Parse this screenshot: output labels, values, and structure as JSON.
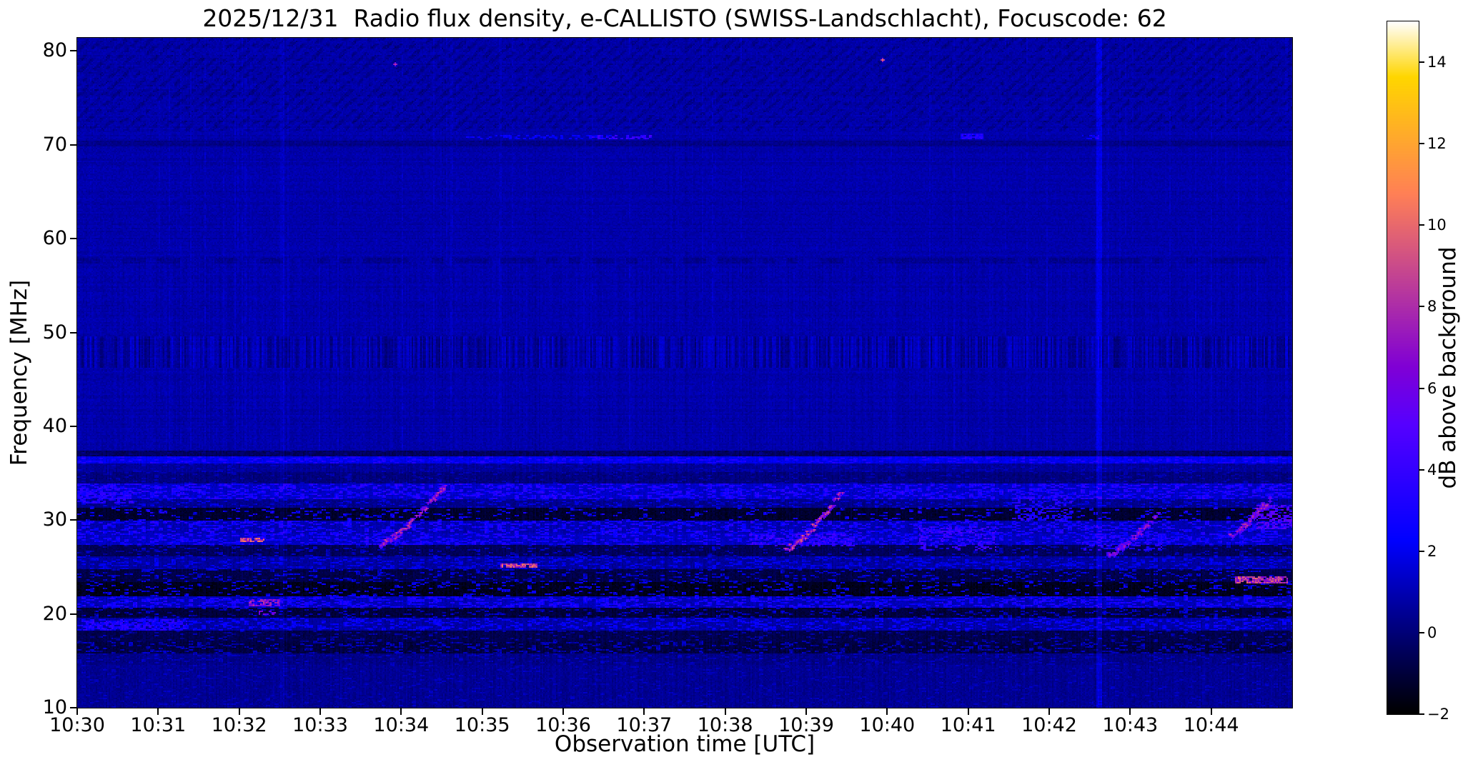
{
  "figure": {
    "background": "#ffffff",
    "text_color": "#000000"
  },
  "chart_data": {
    "type": "heatmap",
    "title": "2025/12/31  Radio flux density, e-CALLISTO (SWISS-Landschlacht), Focuscode: 62",
    "xlabel": "Observation time [UTC]",
    "ylabel": "Frequency [MHz]",
    "colorbar_label": "dB above background",
    "colormap": "gnuplot2",
    "colormap_stops": [
      {
        "value": -2,
        "hex": "#000000"
      },
      {
        "value": 2.25,
        "hex": "#0000ff"
      },
      {
        "value": 6.5,
        "hex": "#8000d6"
      },
      {
        "value": 10.75,
        "hex": "#ff8057"
      },
      {
        "value": 13.64,
        "hex": "#ffd600"
      },
      {
        "value": 15,
        "hex": "#ffffff"
      }
    ],
    "x_tick_labels": [
      "10:30",
      "10:31",
      "10:32",
      "10:33",
      "10:34",
      "10:35",
      "10:36",
      "10:37",
      "10:38",
      "10:39",
      "10:40",
      "10:41",
      "10:42",
      "10:43",
      "10:44"
    ],
    "x_tick_minutes": [
      0,
      1,
      2,
      3,
      4,
      5,
      6,
      7,
      8,
      9,
      10,
      11,
      12,
      13,
      14
    ],
    "x_start_minutes": 0,
    "x_end_minutes": 15,
    "y_ticks_mhz": [
      80,
      70,
      60,
      50,
      40,
      30,
      20,
      10
    ],
    "freq_range_mhz": [
      10,
      81.4
    ],
    "value_range_db": [
      -2,
      15
    ],
    "colorbar_tick_values": [
      14,
      12,
      10,
      8,
      6,
      4,
      2,
      0,
      -2
    ],
    "colorbar_tick_labels": [
      "14",
      "12",
      "10",
      "8",
      "6",
      "4",
      "2",
      "0",
      "−2"
    ],
    "background_level_db": 0.8,
    "rfi_bands": [
      {
        "f_lo": 36.8,
        "f_hi": 37.4,
        "level_db": -0.4,
        "speckle_db": 0.8,
        "fill": 0.06
      },
      {
        "f_lo": 36.1,
        "f_hi": 36.8,
        "level_db": 1.9,
        "speckle_db": 1.6,
        "fill": 0.25
      },
      {
        "f_lo": 35.1,
        "f_hi": 36.1,
        "level_db": 0.55,
        "speckle_db": 0.9,
        "fill": 0.12
      },
      {
        "f_lo": 33.9,
        "f_hi": 35.1,
        "level_db": 0.1,
        "speckle_db": 1.2,
        "fill": 0.12
      },
      {
        "f_lo": 32.3,
        "f_hi": 33.9,
        "level_db": 1.3,
        "speckle_db": 2.6,
        "fill": 0.42
      },
      {
        "f_lo": 31.3,
        "f_hi": 32.3,
        "level_db": 0.35,
        "speckle_db": 1.8,
        "fill": 0.22
      },
      {
        "f_lo": 29.9,
        "f_hi": 31.3,
        "level_db": -1.2,
        "speckle_db": 4.8,
        "fill": 0.14
      },
      {
        "f_lo": 28.5,
        "f_hi": 29.9,
        "level_db": 0.9,
        "speckle_db": 2.8,
        "fill": 0.38
      },
      {
        "f_lo": 27.4,
        "f_hi": 28.5,
        "level_db": 1.2,
        "speckle_db": 2.4,
        "fill": 0.36
      },
      {
        "f_lo": 26.2,
        "f_hi": 27.4,
        "level_db": -0.5,
        "speckle_db": 2.2,
        "fill": 0.15
      },
      {
        "f_lo": 24.8,
        "f_hi": 26.2,
        "level_db": 0.6,
        "speckle_db": 1.8,
        "fill": 0.3
      },
      {
        "f_lo": 23.4,
        "f_hi": 24.8,
        "level_db": -0.8,
        "speckle_db": 3.2,
        "fill": 0.2
      },
      {
        "f_lo": 21.8,
        "f_hi": 23.4,
        "level_db": -1.5,
        "speckle_db": 4.6,
        "fill": 0.15
      },
      {
        "f_lo": 20.6,
        "f_hi": 21.8,
        "level_db": 1.0,
        "speckle_db": 2.6,
        "fill": 0.42
      },
      {
        "f_lo": 19.6,
        "f_hi": 20.6,
        "level_db": -1.0,
        "speckle_db": 3.0,
        "fill": 0.18
      },
      {
        "f_lo": 18.2,
        "f_hi": 19.6,
        "level_db": 0.7,
        "speckle_db": 2.2,
        "fill": 0.35
      },
      {
        "f_lo": 17.0,
        "f_hi": 18.2,
        "level_db": -0.7,
        "speckle_db": 2.0,
        "fill": 0.12
      },
      {
        "f_lo": 15.8,
        "f_hi": 17.0,
        "level_db": -0.9,
        "speckle_db": 2.6,
        "fill": 0.25
      },
      {
        "f_lo": 14.5,
        "f_hi": 15.8,
        "level_db": 0.25,
        "speckle_db": 1.2,
        "fill": 0.15
      },
      {
        "f_lo": 10.0,
        "f_hi": 14.5,
        "level_db": 0.45,
        "speckle_db": 1.0,
        "fill": 0.07
      }
    ],
    "patches": [
      {
        "t_start": 2.02,
        "t_end": 2.32,
        "f_lo": 27.6,
        "f_hi": 28.15,
        "db": 9.5,
        "fill": 0.85
      },
      {
        "t_start": 5.22,
        "t_end": 5.68,
        "f_lo": 24.85,
        "f_hi": 25.45,
        "db": 9.0,
        "fill": 0.9
      },
      {
        "t_start": 14.3,
        "t_end": 14.95,
        "f_lo": 23.3,
        "f_hi": 24.0,
        "db": 8.5,
        "fill": 0.8
      },
      {
        "t_start": 2.12,
        "t_end": 2.5,
        "f_lo": 20.8,
        "f_hi": 21.5,
        "db": 7.0,
        "fill": 0.7
      },
      {
        "t_start": 2.25,
        "t_end": 2.45,
        "f_lo": 19.9,
        "f_hi": 20.4,
        "db": 6.0,
        "fill": 0.7
      },
      {
        "t_start": 0.05,
        "t_end": 1.35,
        "f_lo": 18.2,
        "f_hi": 19.4,
        "db": 3.4,
        "fill": 0.6
      },
      {
        "t_start": 10.9,
        "t_end": 11.18,
        "f_lo": 70.55,
        "f_hi": 71.25,
        "db": 3.4,
        "fill": 0.9
      },
      {
        "t_start": 6.3,
        "t_end": 7.1,
        "f_lo": 70.55,
        "f_hi": 71.05,
        "db": 4.0,
        "fill": 0.5
      },
      {
        "t_start": 4.8,
        "t_end": 6.6,
        "f_lo": 70.55,
        "f_hi": 71.0,
        "db": 2.4,
        "fill": 0.4
      },
      {
        "t_start": 8.3,
        "t_end": 9.6,
        "f_lo": 27.2,
        "f_hi": 28.6,
        "db": 4.0,
        "fill": 0.45
      },
      {
        "t_start": 3.55,
        "t_end": 4.1,
        "f_lo": 27.3,
        "f_hi": 28.3,
        "db": 3.5,
        "fill": 0.45
      },
      {
        "t_start": 12.4,
        "t_end": 13.4,
        "f_lo": 26.8,
        "f_hi": 28.2,
        "db": 3.5,
        "fill": 0.4
      },
      {
        "t_start": 14.55,
        "t_end": 15.0,
        "f_lo": 29.0,
        "f_hi": 31.6,
        "db": 5.0,
        "fill": 0.5
      },
      {
        "t_start": 10.4,
        "t_end": 11.35,
        "f_lo": 26.8,
        "f_hi": 29.3,
        "db": 4.0,
        "fill": 0.4
      },
      {
        "t_start": 11.5,
        "t_end": 12.3,
        "f_lo": 30.0,
        "f_hi": 32.5,
        "db": 3.5,
        "fill": 0.35
      },
      {
        "t_start": 0.0,
        "t_end": 0.7,
        "f_lo": 31.8,
        "f_hi": 33.6,
        "db": 3.5,
        "fill": 0.5
      },
      {
        "t_start": 12.4,
        "t_end": 12.62,
        "f_lo": 70.6,
        "f_hi": 71.0,
        "db": 2.6,
        "fill": 0.6
      }
    ],
    "bursts": [
      {
        "t_start": 3.72,
        "t_end": 4.55,
        "f_start": 27.4,
        "f_end": 33.9,
        "peak_db": 7.5
      },
      {
        "t_start": 8.75,
        "t_end": 9.42,
        "f_start": 27.0,
        "f_end": 32.8,
        "peak_db": 8.0
      },
      {
        "t_start": 12.72,
        "t_end": 13.32,
        "f_start": 26.4,
        "f_end": 30.6,
        "peak_db": 6.5
      },
      {
        "t_start": 14.22,
        "t_end": 14.72,
        "f_start": 28.4,
        "f_end": 32.4,
        "peak_db": 7.0
      }
    ],
    "point_sources": [
      {
        "t": 3.92,
        "f_mhz": 78.65,
        "db": 8.5
      },
      {
        "t": 9.93,
        "f_mhz": 79.05,
        "db": 10.5
      }
    ],
    "vertical_lines": [
      {
        "t": 12.62,
        "delta_db": 1.0,
        "half_width": 0.03
      },
      {
        "t": 2.53,
        "delta_db": 0.35,
        "half_width": 0.025
      }
    ]
  }
}
